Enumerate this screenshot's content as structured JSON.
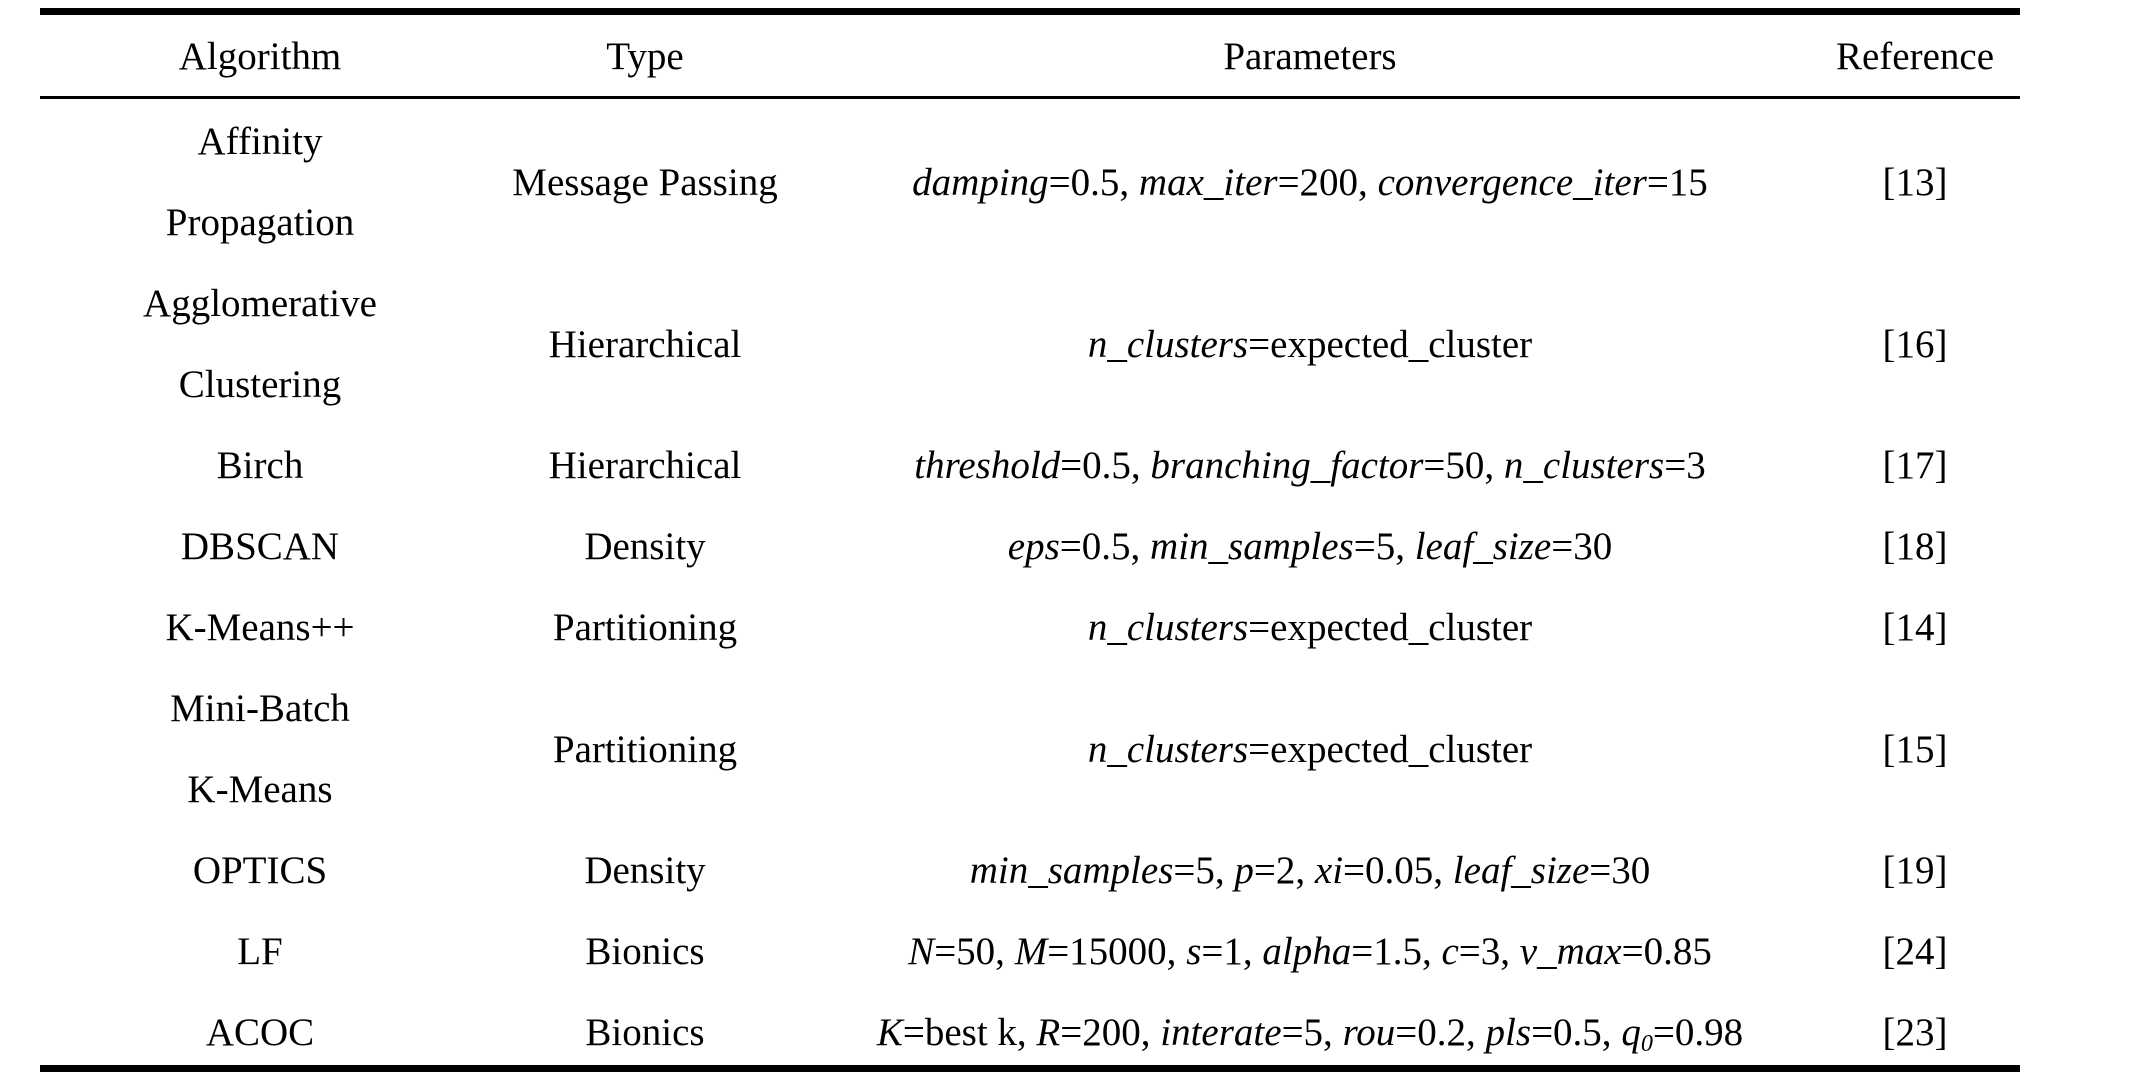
{
  "headers": {
    "algorithm": "Algorithm",
    "type": "Type",
    "parameters": "Parameters",
    "reference": "Reference"
  },
  "rows": [
    {
      "algorithm": [
        "Affinity",
        "Propagation"
      ],
      "type": "Message Passing",
      "parameters": [
        {
          "name": "damping",
          "value": "=0.5, "
        },
        {
          "name": "max_iter",
          "value": "=200, "
        },
        {
          "name": "convergence_iter",
          "value": "=15"
        }
      ],
      "reference": "[13]"
    },
    {
      "algorithm": [
        "Agglomerative",
        "Clustering"
      ],
      "type": "Hierarchical",
      "parameters": [
        {
          "name": "n_clusters",
          "value": "=expected_cluster"
        }
      ],
      "reference": "[16]"
    },
    {
      "algorithm": [
        "Birch"
      ],
      "type": "Hierarchical",
      "parameters": [
        {
          "name": "threshold",
          "value": "=0.5, "
        },
        {
          "name": "branching_factor",
          "value": "=50, "
        },
        {
          "name": "n_clusters",
          "value": "=3"
        }
      ],
      "reference": "[17]"
    },
    {
      "algorithm": [
        "DBSCAN"
      ],
      "type": "Density",
      "parameters": [
        {
          "name": "eps",
          "value": "=0.5, "
        },
        {
          "name": "min_samples",
          "value": "=5, "
        },
        {
          "name": "leaf_size",
          "value": "=30"
        }
      ],
      "reference": "[18]"
    },
    {
      "algorithm": [
        "K-Means++"
      ],
      "type": "Partitioning",
      "parameters": [
        {
          "name": "n_clusters",
          "value": "=expected_cluster"
        }
      ],
      "reference": "[14]"
    },
    {
      "algorithm": [
        "Mini-Batch",
        "K-Means"
      ],
      "type": "Partitioning",
      "parameters": [
        {
          "name": "n_clusters",
          "value": "=expected_cluster"
        }
      ],
      "reference": "[15]"
    },
    {
      "algorithm": [
        "OPTICS"
      ],
      "type": "Density",
      "parameters": [
        {
          "name": "min_samples",
          "value": "=5, "
        },
        {
          "name": "p",
          "value": "=2, "
        },
        {
          "name": "xi",
          "value": "=0.05, "
        },
        {
          "name": "leaf_size",
          "value": "=30"
        }
      ],
      "reference": "[19]"
    },
    {
      "algorithm": [
        "LF"
      ],
      "type": "Bionics",
      "parameters": [
        {
          "name": "N",
          "value": "=50, "
        },
        {
          "name": "M",
          "value": "=15000, "
        },
        {
          "name": "s",
          "value": "=1, "
        },
        {
          "name": "alpha",
          "value": "=1.5, "
        },
        {
          "name": "c",
          "value": "=3, "
        },
        {
          "name": "v_max",
          "value": "=0.85"
        }
      ],
      "reference": "[24]"
    },
    {
      "algorithm": [
        "ACOC"
      ],
      "type": "Bionics",
      "parameters": [
        {
          "name": "K",
          "value": "=best k, "
        },
        {
          "name": "R",
          "value": "=200, "
        },
        {
          "name": "interate",
          "value": "=5, "
        },
        {
          "name": "rou",
          "value": "=0.2, "
        },
        {
          "name": "pls",
          "value": "=0.5, "
        },
        {
          "name": "q",
          "sub": "0",
          "value": "=0.98"
        }
      ],
      "reference": "[23]"
    }
  ]
}
